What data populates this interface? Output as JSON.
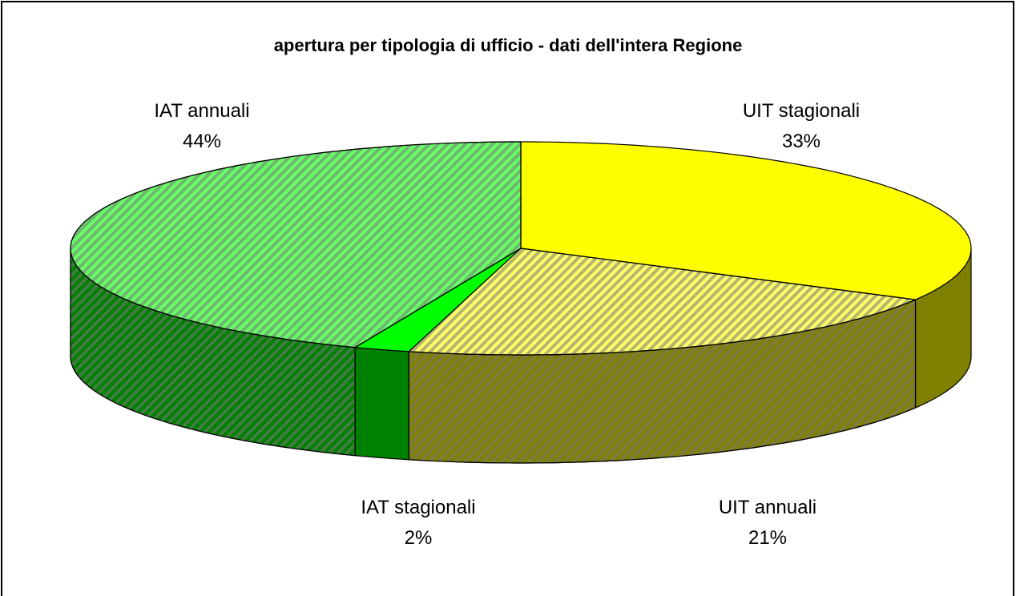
{
  "chart_data": {
    "type": "pie",
    "title": "apertura per tipologia di ufficio - dati dell'intera Regione",
    "categories": [
      "UIT stagionali",
      "UIT annuali",
      "IAT stagionali",
      "IAT annuali"
    ],
    "values": [
      33,
      21,
      2,
      44
    ],
    "value_labels": [
      "33%",
      "21%",
      "2%",
      "44%"
    ],
    "colors": [
      "#ffff00",
      "#ffff66",
      "#00ff00",
      "#66ff66"
    ],
    "side_colors": [
      "#808000",
      "#808000",
      "#008000",
      "#008000"
    ],
    "hatched": [
      false,
      true,
      false,
      true
    ],
    "three_d": true
  }
}
